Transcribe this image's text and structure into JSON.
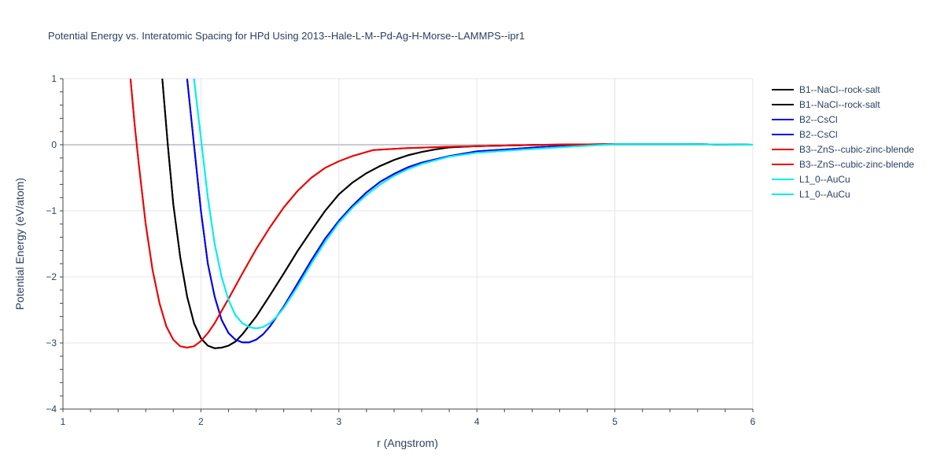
{
  "chart_data": {
    "type": "line",
    "title": "Potential Energy vs. Interatomic Spacing for HPd Using 2013--Hale-L-M--Pd-Ag-H-Morse--LAMMPS--ipr1",
    "xlabel": "r (Angstrom)",
    "ylabel": "Potential Energy (eV/atom)",
    "xlim": [
      1,
      6
    ],
    "ylim": [
      -4,
      1
    ],
    "xticks": [
      1,
      2,
      3,
      4,
      5,
      6
    ],
    "yticks": [
      1,
      0,
      -1,
      -2,
      -3,
      -4
    ],
    "ytick_labels": [
      "1",
      "0",
      "−1",
      "−2",
      "−3",
      "−4"
    ],
    "grid": true,
    "legend_position": "right",
    "series": [
      {
        "name": "B1--NaCl--rock-salt",
        "color": "#000000",
        "x": [
          1.72,
          1.76,
          1.8,
          1.85,
          1.9,
          1.95,
          2.0,
          2.05,
          2.1,
          2.15,
          2.2,
          2.25,
          2.3,
          2.4,
          2.5,
          2.6,
          2.7,
          2.8,
          2.9,
          3.0,
          3.1,
          3.2,
          3.3,
          3.4,
          3.5,
          3.6,
          3.7,
          3.8,
          4.0,
          4.5,
          5.0,
          5.5,
          6.0
        ],
        "y": [
          1.0,
          0.0,
          -0.9,
          -1.7,
          -2.3,
          -2.7,
          -2.93,
          -3.04,
          -3.08,
          -3.07,
          -3.04,
          -2.98,
          -2.87,
          -2.6,
          -2.28,
          -1.95,
          -1.61,
          -1.3,
          -1.0,
          -0.75,
          -0.57,
          -0.43,
          -0.32,
          -0.23,
          -0.16,
          -0.11,
          -0.07,
          -0.04,
          -0.02,
          0.0,
          0.01,
          0.01,
          0.0
        ]
      },
      {
        "name": "B1--NaCl--rock-salt",
        "color": "#000000",
        "x": [
          1.72,
          1.76,
          1.8,
          1.85,
          1.9,
          1.95,
          2.0,
          2.05,
          2.1,
          2.15,
          2.2,
          2.25,
          2.3,
          2.4,
          2.5,
          2.6,
          2.7,
          2.8,
          2.9,
          3.0,
          3.1,
          3.2,
          3.3,
          3.4,
          3.5,
          3.6,
          3.7,
          3.8,
          4.0,
          4.5,
          5.0,
          5.5,
          6.0
        ],
        "y": [
          1.0,
          0.0,
          -0.9,
          -1.7,
          -2.3,
          -2.7,
          -2.93,
          -3.04,
          -3.08,
          -3.07,
          -3.04,
          -2.98,
          -2.87,
          -2.6,
          -2.28,
          -1.95,
          -1.61,
          -1.3,
          -1.0,
          -0.75,
          -0.57,
          -0.43,
          -0.32,
          -0.23,
          -0.16,
          -0.11,
          -0.07,
          -0.04,
          -0.02,
          0.0,
          0.01,
          0.01,
          0.0
        ]
      },
      {
        "name": "B2--CsCl",
        "color": "#0000ee",
        "x": [
          1.9,
          1.95,
          2.0,
          2.05,
          2.1,
          2.15,
          2.2,
          2.25,
          2.3,
          2.35,
          2.4,
          2.45,
          2.5,
          2.6,
          2.7,
          2.8,
          2.9,
          3.0,
          3.1,
          3.2,
          3.3,
          3.4,
          3.5,
          3.6,
          3.8,
          4.0,
          4.5,
          5.0,
          5.5,
          6.0
        ],
        "y": [
          1.0,
          0.0,
          -1.0,
          -1.8,
          -2.3,
          -2.65,
          -2.85,
          -2.95,
          -2.99,
          -2.99,
          -2.95,
          -2.87,
          -2.75,
          -2.45,
          -2.1,
          -1.75,
          -1.42,
          -1.15,
          -0.92,
          -0.72,
          -0.56,
          -0.44,
          -0.34,
          -0.27,
          -0.17,
          -0.1,
          -0.03,
          0.01,
          0.01,
          0.0
        ]
      },
      {
        "name": "B2--CsCl",
        "color": "#0000ee",
        "x": [
          1.9,
          1.95,
          2.0,
          2.05,
          2.1,
          2.15,
          2.2,
          2.25,
          2.3,
          2.35,
          2.4,
          2.45,
          2.5,
          2.6,
          2.7,
          2.8,
          2.9,
          3.0,
          3.1,
          3.2,
          3.3,
          3.4,
          3.5,
          3.6,
          3.8,
          4.0,
          4.5,
          5.0,
          5.5,
          6.0
        ],
        "y": [
          1.0,
          0.0,
          -1.0,
          -1.8,
          -2.3,
          -2.65,
          -2.85,
          -2.95,
          -2.99,
          -2.99,
          -2.95,
          -2.87,
          -2.75,
          -2.45,
          -2.1,
          -1.75,
          -1.42,
          -1.15,
          -0.92,
          -0.72,
          -0.56,
          -0.44,
          -0.34,
          -0.27,
          -0.17,
          -0.1,
          -0.03,
          0.01,
          0.01,
          0.0
        ]
      },
      {
        "name": "B3--ZnS--cubic-zinc-blende",
        "color": "#ee0000",
        "x": [
          1.49,
          1.52,
          1.55,
          1.6,
          1.65,
          1.7,
          1.75,
          1.8,
          1.85,
          1.9,
          1.95,
          2.0,
          2.05,
          2.1,
          2.2,
          2.3,
          2.4,
          2.5,
          2.6,
          2.7,
          2.8,
          2.9,
          3.0,
          3.1,
          3.25,
          3.5,
          3.8,
          4.0,
          4.5,
          5.0,
          5.5,
          6.0
        ],
        "y": [
          1.0,
          0.3,
          -0.3,
          -1.2,
          -1.9,
          -2.4,
          -2.75,
          -2.95,
          -3.05,
          -3.07,
          -3.05,
          -2.97,
          -2.85,
          -2.7,
          -2.33,
          -1.95,
          -1.58,
          -1.25,
          -0.95,
          -0.7,
          -0.5,
          -0.35,
          -0.25,
          -0.17,
          -0.08,
          -0.05,
          -0.03,
          -0.02,
          0.0,
          0.01,
          0.01,
          0.0
        ]
      },
      {
        "name": "B3--ZnS--cubic-zinc-blende",
        "color": "#ee0000",
        "x": [
          1.49,
          1.52,
          1.55,
          1.6,
          1.65,
          1.7,
          1.75,
          1.8,
          1.85,
          1.9,
          1.95,
          2.0,
          2.05,
          2.1,
          2.2,
          2.3,
          2.4,
          2.5,
          2.6,
          2.7,
          2.8,
          2.9,
          3.0,
          3.1,
          3.25,
          3.5,
          3.8,
          4.0,
          4.5,
          5.0,
          5.5,
          6.0
        ],
        "y": [
          1.0,
          0.3,
          -0.3,
          -1.2,
          -1.9,
          -2.4,
          -2.75,
          -2.95,
          -3.05,
          -3.07,
          -3.05,
          -2.97,
          -2.85,
          -2.7,
          -2.33,
          -1.95,
          -1.58,
          -1.25,
          -0.95,
          -0.7,
          -0.5,
          -0.35,
          -0.25,
          -0.17,
          -0.08,
          -0.05,
          -0.03,
          -0.02,
          0.0,
          0.01,
          0.01,
          0.0
        ]
      },
      {
        "name": "L1_0--AuCu",
        "color": "#00eeee",
        "x": [
          1.95,
          2.0,
          2.05,
          2.1,
          2.15,
          2.2,
          2.25,
          2.3,
          2.35,
          2.4,
          2.45,
          2.5,
          2.55,
          2.6,
          2.7,
          2.8,
          2.9,
          3.0,
          3.1,
          3.2,
          3.3,
          3.4,
          3.5,
          3.6,
          3.8,
          4.0,
          4.5,
          5.0,
          5.5,
          6.0
        ],
        "y": [
          1.0,
          0.1,
          -0.8,
          -1.5,
          -2.0,
          -2.35,
          -2.58,
          -2.7,
          -2.76,
          -2.78,
          -2.76,
          -2.7,
          -2.6,
          -2.47,
          -2.15,
          -1.8,
          -1.47,
          -1.18,
          -0.95,
          -0.76,
          -0.6,
          -0.47,
          -0.37,
          -0.29,
          -0.18,
          -0.12,
          -0.05,
          0.01,
          0.01,
          0.0
        ]
      },
      {
        "name": "L1_0--AuCu",
        "color": "#00eeee",
        "x": [
          1.95,
          2.0,
          2.05,
          2.1,
          2.15,
          2.2,
          2.25,
          2.3,
          2.35,
          2.4,
          2.45,
          2.5,
          2.55,
          2.6,
          2.7,
          2.8,
          2.9,
          3.0,
          3.1,
          3.2,
          3.3,
          3.4,
          3.5,
          3.6,
          3.8,
          4.0,
          4.5,
          5.0,
          5.5,
          6.0
        ],
        "y": [
          1.0,
          0.1,
          -0.8,
          -1.5,
          -2.0,
          -2.35,
          -2.58,
          -2.7,
          -2.76,
          -2.78,
          -2.76,
          -2.7,
          -2.6,
          -2.47,
          -2.15,
          -1.8,
          -1.47,
          -1.18,
          -0.95,
          -0.76,
          -0.6,
          -0.47,
          -0.37,
          -0.29,
          -0.18,
          -0.12,
          -0.05,
          0.01,
          0.01,
          0.0
        ]
      }
    ]
  }
}
